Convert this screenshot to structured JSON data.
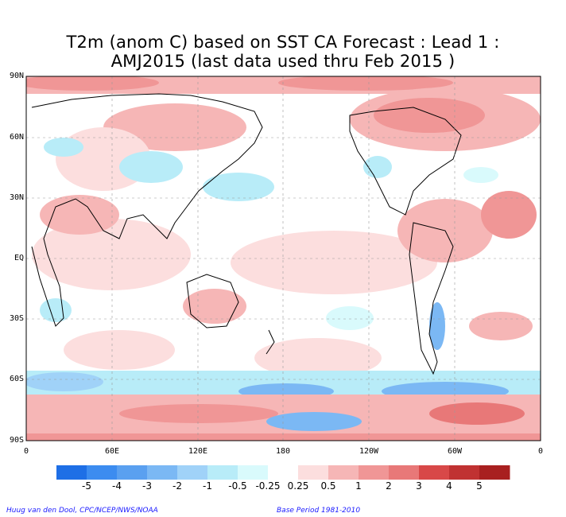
{
  "title": {
    "line1": "T2m (anom C) based on SST CA Forecast : Lead 1 :",
    "line2": "AMJ2015 (last data used thru Feb 2015 )"
  },
  "axes": {
    "y_ticks": [
      "90N",
      "60N",
      "30N",
      "EQ",
      "30S",
      "60S",
      "90S"
    ],
    "x_ticks": [
      "0",
      "60E",
      "120E",
      "180",
      "120W",
      "60W",
      "0"
    ]
  },
  "colorbar": {
    "labels": [
      "-5",
      "-4",
      "-3",
      "-2",
      "-1",
      "-0.5",
      "-0.25",
      "0.25",
      "0.5",
      "1",
      "2",
      "3",
      "4",
      "5"
    ],
    "colors": [
      "#1e6fe6",
      "#3c8cf0",
      "#5aa0f0",
      "#7bb8f4",
      "#a0d2f8",
      "#b8ecf8",
      "#d9fafc",
      "#ffffff",
      "#fcdede",
      "#f6b6b6",
      "#f09696",
      "#e87878",
      "#d84848",
      "#c03232",
      "#a82020"
    ]
  },
  "footer": {
    "left": "Huug van den Dool, CPC/NCEP/NWS/NOAA",
    "right": "Base Period 1981-2010"
  }
}
